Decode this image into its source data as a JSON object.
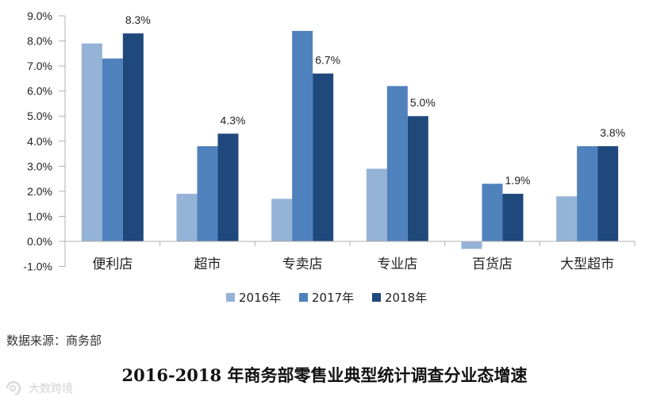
{
  "chart_data": {
    "type": "bar",
    "categories": [
      "便利店",
      "超市",
      "专卖店",
      "专业店",
      "百货店",
      "大型超市"
    ],
    "series": [
      {
        "name": "2016年",
        "color": "#95B3D7",
        "values": [
          7.9,
          1.9,
          1.7,
          2.9,
          -0.3,
          1.8
        ]
      },
      {
        "name": "2017年",
        "color": "#4F81BD",
        "values": [
          7.3,
          3.8,
          8.4,
          6.2,
          2.3,
          3.8
        ]
      },
      {
        "name": "2018年",
        "color": "#1F497D",
        "values": [
          8.3,
          4.3,
          6.7,
          5.0,
          1.9,
          3.8
        ]
      }
    ],
    "data_labels": {
      "series": "2018年",
      "labels": [
        "8.3%",
        "4.3%",
        "6.7%",
        "5.0%",
        "1.9%",
        "3.8%"
      ]
    },
    "yticks": [
      "9.0%",
      "8.0%",
      "7.0%",
      "6.0%",
      "5.0%",
      "4.0%",
      "3.0%",
      "2.0%",
      "1.0%",
      "0.0%",
      "-1.0%"
    ],
    "ylim": [
      -1,
      9
    ],
    "title": "",
    "xlabel": "",
    "ylabel": "",
    "grid": false,
    "legend_position": "bottom-center"
  },
  "source": "数据来源：商务部",
  "bottom_title": "2016-2018 年商务部零售业典型统计调查分业态增速",
  "watermark": "大数跨境"
}
